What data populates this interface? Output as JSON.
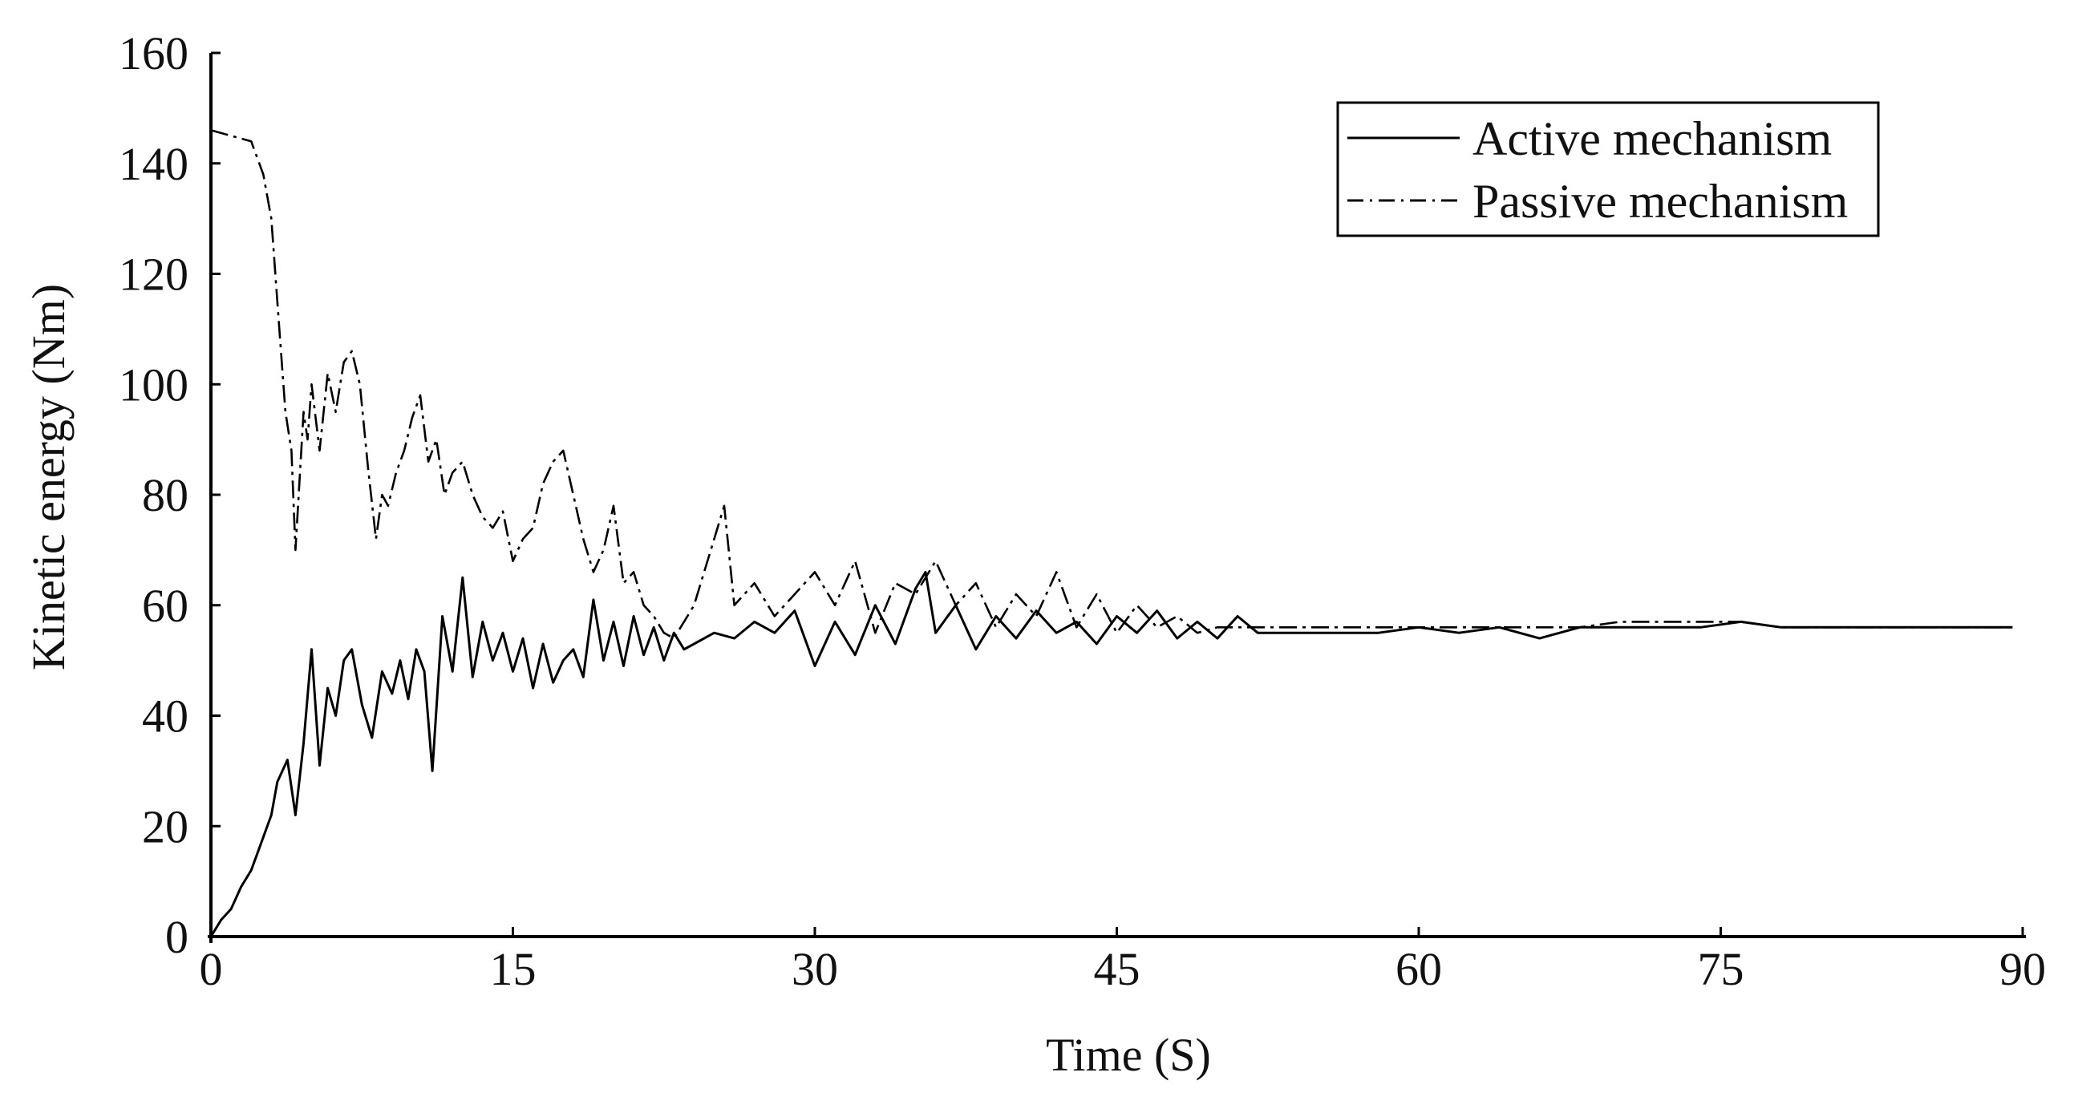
{
  "chart_data": {
    "type": "line",
    "title": "",
    "xlabel": "Time (S)",
    "ylabel": "Kinetic energy (Nm)",
    "xlim": [
      0,
      90
    ],
    "ylim": [
      0,
      160
    ],
    "x_ticks": [
      0,
      15,
      30,
      45,
      60,
      75,
      90
    ],
    "y_ticks": [
      0,
      20,
      40,
      60,
      80,
      100,
      120,
      140,
      160
    ],
    "x_tick_labels": [
      "0",
      "15",
      "30",
      "45",
      "60",
      "75",
      "90"
    ],
    "y_tick_labels": [
      "0",
      "20",
      "40",
      "60",
      "80",
      "100",
      "120",
      "140",
      "160"
    ],
    "grid": false,
    "legend_position": "top-right",
    "series": [
      {
        "name": "Active mechanism",
        "style": "solid",
        "color": "#000000",
        "x": [
          0,
          0.5,
          1,
          1.5,
          2,
          2.5,
          3,
          3.3,
          3.8,
          4.2,
          4.6,
          5,
          5.4,
          5.8,
          6.2,
          6.6,
          7,
          7.5,
          8,
          8.5,
          9,
          9.4,
          9.8,
          10.2,
          10.6,
          11,
          11.5,
          12,
          12.5,
          13,
          13.5,
          14,
          14.5,
          15,
          15.5,
          16,
          16.5,
          17,
          17.5,
          18,
          18.5,
          19,
          19.5,
          20,
          20.5,
          21,
          21.5,
          22,
          22.5,
          23,
          23.5,
          24,
          25,
          26,
          27,
          28,
          29,
          30,
          31,
          32,
          33,
          34,
          35,
          35.5,
          36,
          37,
          38,
          39,
          40,
          41,
          42,
          43,
          44,
          45,
          46,
          47,
          48,
          49,
          50,
          51,
          52,
          54,
          56,
          58,
          60,
          62,
          64,
          66,
          68,
          70,
          72,
          74,
          76,
          78,
          80,
          82,
          84,
          86,
          88,
          89.5
        ],
        "y": [
          0,
          3,
          5,
          9,
          12,
          17,
          22,
          28,
          32,
          22,
          35,
          52,
          31,
          45,
          40,
          50,
          52,
          42,
          36,
          48,
          44,
          50,
          43,
          52,
          48,
          30,
          58,
          48,
          65,
          47,
          57,
          50,
          55,
          48,
          54,
          45,
          53,
          46,
          50,
          52,
          47,
          61,
          50,
          57,
          49,
          58,
          51,
          56,
          50,
          55,
          52,
          53,
          55,
          54,
          57,
          55,
          59,
          49,
          57,
          51,
          60,
          53,
          63,
          66,
          55,
          60,
          52,
          58,
          54,
          59,
          55,
          57,
          53,
          58,
          55,
          59,
          54,
          57,
          54,
          58,
          55,
          55,
          55,
          55,
          56,
          55,
          56,
          54,
          56,
          56,
          56,
          56,
          57,
          56,
          56,
          56,
          56,
          56,
          56,
          56
        ]
      },
      {
        "name": "Passive mechanism",
        "style": "dash-dot",
        "color": "#000000",
        "x": [
          0,
          1,
          2,
          2.6,
          3,
          3.4,
          3.7,
          4,
          4.2,
          4.6,
          4.8,
          5,
          5.4,
          5.8,
          6.2,
          6.6,
          7,
          7.4,
          7.8,
          8.2,
          8.5,
          8.8,
          9.2,
          9.6,
          10,
          10.4,
          10.8,
          11.2,
          11.6,
          12,
          12.5,
          13,
          13.5,
          14,
          14.5,
          15,
          15.5,
          16,
          16.5,
          17,
          17.5,
          18,
          18.5,
          19,
          19.5,
          20,
          20.5,
          21,
          21.5,
          22,
          22.5,
          23,
          23.5,
          24,
          25,
          25.5,
          26,
          27,
          28,
          29,
          30,
          31,
          32,
          33,
          34,
          35,
          36,
          37,
          38,
          39,
          40,
          41,
          42,
          43,
          44,
          45,
          46,
          47,
          48,
          49,
          50,
          52,
          54,
          56,
          58,
          60,
          62,
          64,
          66,
          68,
          70,
          72,
          74,
          76,
          78,
          80,
          82,
          84,
          86,
          88,
          89.5
        ],
        "y": [
          146,
          145,
          144,
          138,
          130,
          110,
          95,
          88,
          70,
          95,
          90,
          100,
          88,
          102,
          95,
          104,
          106,
          100,
          85,
          72,
          80,
          78,
          84,
          88,
          94,
          98,
          86,
          90,
          80,
          84,
          86,
          80,
          76,
          74,
          77,
          68,
          72,
          74,
          82,
          86,
          88,
          80,
          72,
          66,
          70,
          78,
          64,
          66,
          60,
          58,
          55,
          54,
          57,
          60,
          72,
          78,
          60,
          64,
          58,
          62,
          66,
          60,
          68,
          55,
          64,
          62,
          68,
          60,
          64,
          56,
          62,
          58,
          66,
          56,
          62,
          55,
          60,
          56,
          58,
          55,
          56,
          56,
          56,
          56,
          56,
          56,
          56,
          56,
          56,
          56,
          57,
          57,
          57,
          57,
          56,
          56,
          56,
          56,
          56,
          56,
          56
        ]
      }
    ]
  }
}
